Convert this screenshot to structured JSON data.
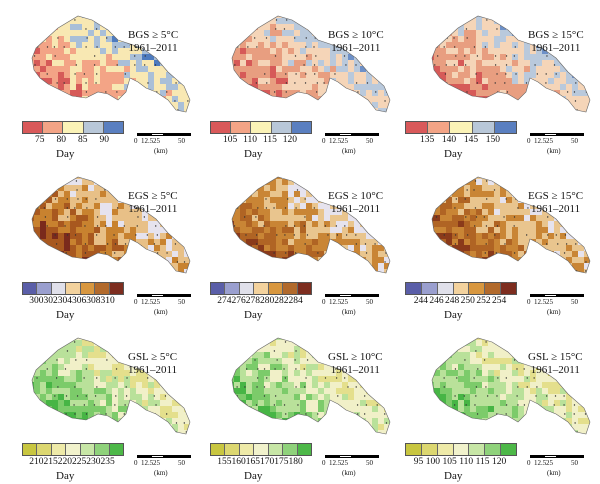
{
  "panels": [
    {
      "metric": "BGS ≥ 5°C",
      "period": "1961–2011",
      "ticks": [
        "75",
        "80",
        "85",
        "90"
      ],
      "colors": [
        "#d9595a",
        "#f3a486",
        "#fbf3b7",
        "#b8c7d8",
        "#5a7fc0"
      ],
      "unit": "Day",
      "map_colors": [
        "#d65a58",
        "#f3a486",
        "#f8e8b3",
        "#a9bfd8",
        "#4d7bbf"
      ]
    },
    {
      "metric": "BGS ≥ 10°C",
      "period": "1961–2011",
      "ticks": [
        "105",
        "110",
        "115",
        "120"
      ],
      "colors": [
        "#d9595a",
        "#f3a486",
        "#fbf3b7",
        "#b8c7d8",
        "#5a7fc0"
      ],
      "unit": "Day",
      "map_colors": [
        "#d65a58",
        "#e89e80",
        "#f5d5b8",
        "#b9c9dc",
        "#6d90c8"
      ]
    },
    {
      "metric": "BGS ≥ 15°C",
      "period": "1961–2011",
      "ticks": [
        "135",
        "140",
        "145",
        "150"
      ],
      "colors": [
        "#d9595a",
        "#f3a486",
        "#fbf3b7",
        "#b8c7d8",
        "#5a7fc0"
      ],
      "unit": "Day",
      "map_colors": [
        "#d65a58",
        "#e89e80",
        "#f5d5b8",
        "#b9c9dc",
        "#6d90c8"
      ]
    },
    {
      "metric": "EGS ≥ 5°C",
      "period": "1961–2011",
      "ticks": [
        "300",
        "302",
        "304",
        "306",
        "308",
        "310"
      ],
      "colors": [
        "#5a5ea8",
        "#9a9fcf",
        "#e0e0ea",
        "#f3d29d",
        "#d8973f",
        "#b26a2c",
        "#7d2d1f"
      ],
      "unit": "Day",
      "map_colors": [
        "#7a2a1c",
        "#a8581f",
        "#c8822f",
        "#e8c087",
        "#e6e3ee",
        "#6b72b8"
      ]
    },
    {
      "metric": "EGS ≥ 10°C",
      "period": "1961–2011",
      "ticks": [
        "274",
        "276",
        "278",
        "280",
        "282",
        "284"
      ],
      "colors": [
        "#5a5ea8",
        "#9a9fcf",
        "#e0e0ea",
        "#f3d29d",
        "#d8973f",
        "#b26a2c",
        "#7d2d1f"
      ],
      "unit": "Day",
      "map_colors": [
        "#8a3a1a",
        "#b06424",
        "#c98535",
        "#e9c58e",
        "#e6e3ee",
        "#3a3f8f"
      ]
    },
    {
      "metric": "EGS ≥ 15°C",
      "period": "1961–2011",
      "ticks": [
        "244",
        "246",
        "248",
        "250",
        "252",
        "254"
      ],
      "colors": [
        "#5a5ea8",
        "#9a9fcf",
        "#e0e0ea",
        "#f3d29d",
        "#d8973f",
        "#b26a2c",
        "#7d2d1f"
      ],
      "unit": "Day",
      "map_colors": [
        "#8a3a1a",
        "#b06424",
        "#c98535",
        "#e9c58e",
        "#e6e3ee",
        "#3a3f8f"
      ]
    },
    {
      "metric": "GSL ≥ 5°C",
      "period": "1961–2011",
      "ticks": [
        "210",
        "215",
        "220",
        "225",
        "230",
        "235"
      ],
      "colors": [
        "#c8c640",
        "#dcd770",
        "#eeeaa8",
        "#f1f2cc",
        "#c7e6a6",
        "#8fd27b",
        "#4db848"
      ],
      "unit": "Day",
      "map_colors": [
        "#c9c645",
        "#e4df8c",
        "#f1f0c8",
        "#b9e19a",
        "#7ccb6a",
        "#47b545"
      ]
    },
    {
      "metric": "GSL ≥ 10°C",
      "period": "1961–2011",
      "ticks": [
        "155",
        "160",
        "165",
        "170",
        "175",
        "180"
      ],
      "colors": [
        "#c8c640",
        "#dcd770",
        "#eeeaa8",
        "#f1f2cc",
        "#c7e6a6",
        "#8fd27b",
        "#4db848"
      ],
      "unit": "Day",
      "map_colors": [
        "#c9c645",
        "#e4df8c",
        "#f1f0c8",
        "#b9e19a",
        "#7ccb6a",
        "#47b545"
      ]
    },
    {
      "metric": "GSL ≥ 15°C",
      "period": "1961–2011",
      "ticks": [
        "95",
        "100",
        "105",
        "110",
        "115",
        "120"
      ],
      "colors": [
        "#c8c640",
        "#dcd770",
        "#eeeaa8",
        "#f1f2cc",
        "#c7e6a6",
        "#8fd27b",
        "#4db848"
      ],
      "unit": "Day",
      "map_colors": [
        "#c9c645",
        "#e4df8c",
        "#f1f0c8",
        "#b9e19a",
        "#7ccb6a",
        "#47b545"
      ]
    }
  ],
  "scale_bar": {
    "labels": [
      "0",
      "12.5",
      "25",
      "50"
    ],
    "unit": "(km)"
  }
}
